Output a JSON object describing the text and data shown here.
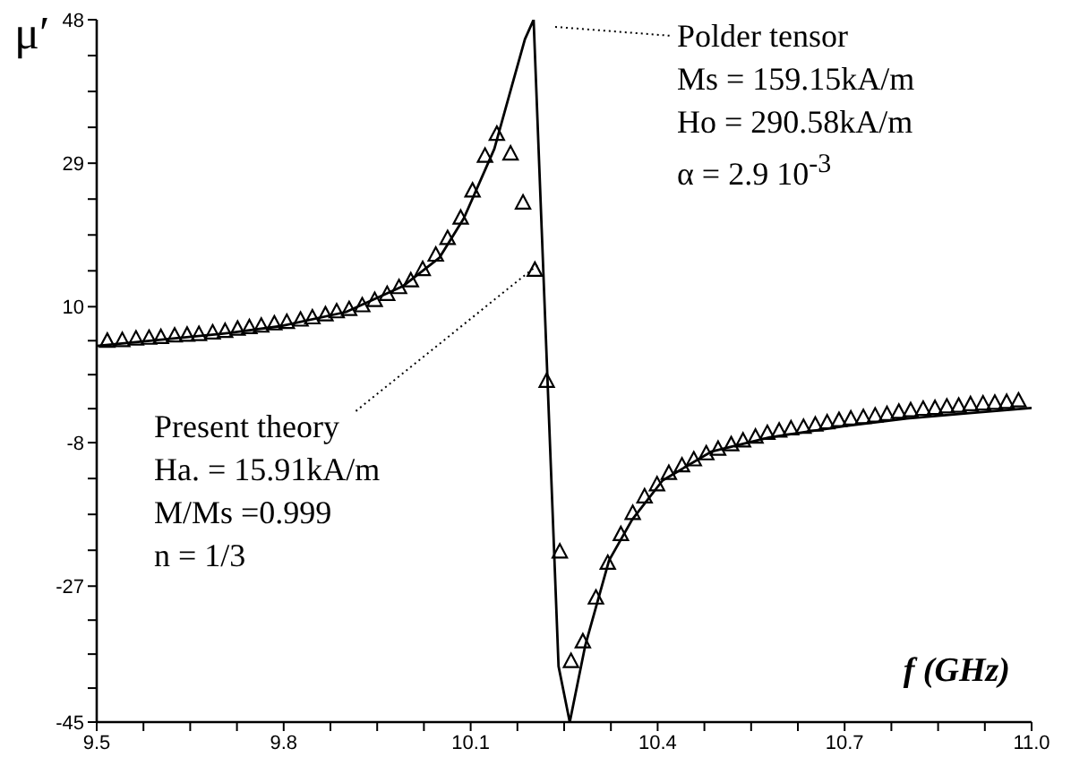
{
  "chart_data": {
    "type": "line",
    "ylabel": "μ′",
    "xlabel": "f (GHz)",
    "xlim": [
      9.5,
      11
    ],
    "ylim": [
      -45,
      48
    ],
    "xticks": [
      9.5,
      {
        "value": 9.575,
        "label": null
      },
      {
        "value": 9.65,
        "label": null
      },
      {
        "value": 9.725,
        "label": null
      },
      9.8,
      {
        "value": 9.875,
        "label": null
      },
      {
        "value": 9.95,
        "label": null
      },
      {
        "value": 10.025,
        "label": null
      },
      10.1,
      {
        "value": 10.175,
        "label": null
      },
      {
        "value": 10.25,
        "label": null
      },
      {
        "value": 10.325,
        "label": null
      },
      10.4,
      {
        "value": 10.475,
        "label": null
      },
      {
        "value": 10.55,
        "label": null
      },
      {
        "value": 10.625,
        "label": null
      },
      10.7,
      {
        "value": 10.775,
        "label": null
      },
      {
        "value": 10.85,
        "label": null
      },
      {
        "value": 10.925,
        "label": null
      },
      {
        "value": 11,
        "label": "11.0"
      }
    ],
    "yticks": [
      -45,
      {
        "value": -40.5,
        "label": null
      },
      {
        "value": -36,
        "label": null
      },
      {
        "value": -31.5,
        "label": null
      },
      -27,
      {
        "value": -22.25,
        "label": null
      },
      {
        "value": -17.5,
        "label": null
      },
      {
        "value": -12.75,
        "label": null
      },
      -8,
      {
        "value": -3.5,
        "label": null
      },
      {
        "value": 1,
        "label": null
      },
      {
        "value": 5.5,
        "label": null
      },
      10,
      {
        "value": 14.75,
        "label": null
      },
      {
        "value": 19.5,
        "label": null
      },
      {
        "value": 24.25,
        "label": null
      },
      29,
      {
        "value": 33.75,
        "label": null
      },
      {
        "value": 38.5,
        "label": null
      },
      {
        "value": 43.25,
        "label": null
      },
      48
    ],
    "annotations": [
      "Polder tensor",
      "Ms = 159.15kA/m",
      "Ho = 290.58kA/m",
      "α = 2.9 10$^{-3}$",
      {
        "text": "Present theory",
        "x": 10.207,
        "y": 15.5
      },
      "Ha. = 15.91kA/m",
      "M/Ms =0.999",
      "n = 1/3"
    ],
    "series": [
      {
        "type": "line",
        "color": "#000000",
        "marker": "none",
        "line_style": "solid",
        "x": [
          9.5,
          9.6,
          9.7,
          9.793,
          9.9,
          9.991,
          10.05,
          10.089,
          10.138,
          10.167,
          10.187,
          10.201,
          10.241,
          10.259,
          10.284,
          10.322,
          10.359,
          10.408,
          10.486,
          10.58,
          10.7,
          10.8,
          10.9,
          11
        ],
        "values": [
          4.8,
          5.6,
          6.4,
          7.4,
          9.3,
          12.7,
          16.5,
          21.7,
          30.9,
          39.5,
          45.4,
          48,
          -37.6,
          -45,
          -34.8,
          -23.6,
          -18.2,
          -13,
          -9.2,
          -7.3,
          -5.8,
          -4.8,
          -4.1,
          -3.4
        ]
      },
      {
        "type": "scatter",
        "color": "#000000",
        "marker": "triangle",
        "x": [
          9.517,
          9.541,
          9.563,
          9.584,
          9.603,
          9.625,
          9.645,
          9.664,
          9.686,
          9.706,
          9.726,
          9.745,
          9.764,
          9.785,
          9.805,
          9.827,
          9.846,
          9.867,
          9.885,
          9.905,
          9.926,
          9.946,
          9.966,
          9.985,
          10.004,
          10.023,
          10.044,
          10.063,
          10.084,
          10.103,
          10.123,
          10.142,
          10.164,
          10.184,
          10.203,
          10.222,
          10.243,
          10.261,
          10.28,
          10.301,
          10.32,
          10.341,
          10.36,
          10.379,
          10.399,
          10.418,
          10.439,
          10.458,
          10.478,
          10.497,
          10.518,
          10.537,
          10.557,
          10.576,
          10.595,
          10.614,
          10.634,
          10.653,
          10.672,
          10.691,
          10.71,
          10.73,
          10.749,
          10.768,
          10.787,
          10.806,
          10.826,
          10.845,
          10.864,
          10.883,
          10.902,
          10.922,
          10.941,
          10.96,
          10.979
        ],
        "values": [
          5.4,
          5.5,
          5.7,
          5.8,
          5.9,
          6.1,
          6.2,
          6.3,
          6.5,
          6.7,
          7,
          7.2,
          7.4,
          7.7,
          7.9,
          8.2,
          8.5,
          8.9,
          9.3,
          9.6,
          10.1,
          10.8,
          11.6,
          12.5,
          13.4,
          14.9,
          16.8,
          19,
          21.7,
          25.3,
          29.9,
          32.8,
          30.2,
          23.7,
          14.8,
          0.1,
          -22.5,
          -37,
          -34.4,
          -28.6,
          -24,
          -20.2,
          -17.4,
          -15.2,
          -13.6,
          -12.1,
          -11.1,
          -10.3,
          -9.5,
          -8.9,
          -8.3,
          -7.8,
          -7.3,
          -6.8,
          -6.5,
          -6.2,
          -6,
          -5.7,
          -5.4,
          -5.1,
          -4.9,
          -4.7,
          -4.5,
          -4.3,
          -4,
          -3.8,
          -3.6,
          -3.5,
          -3.3,
          -3.2,
          -3,
          -2.9,
          -2.8,
          -2.7,
          -2.5
        ]
      }
    ]
  }
}
